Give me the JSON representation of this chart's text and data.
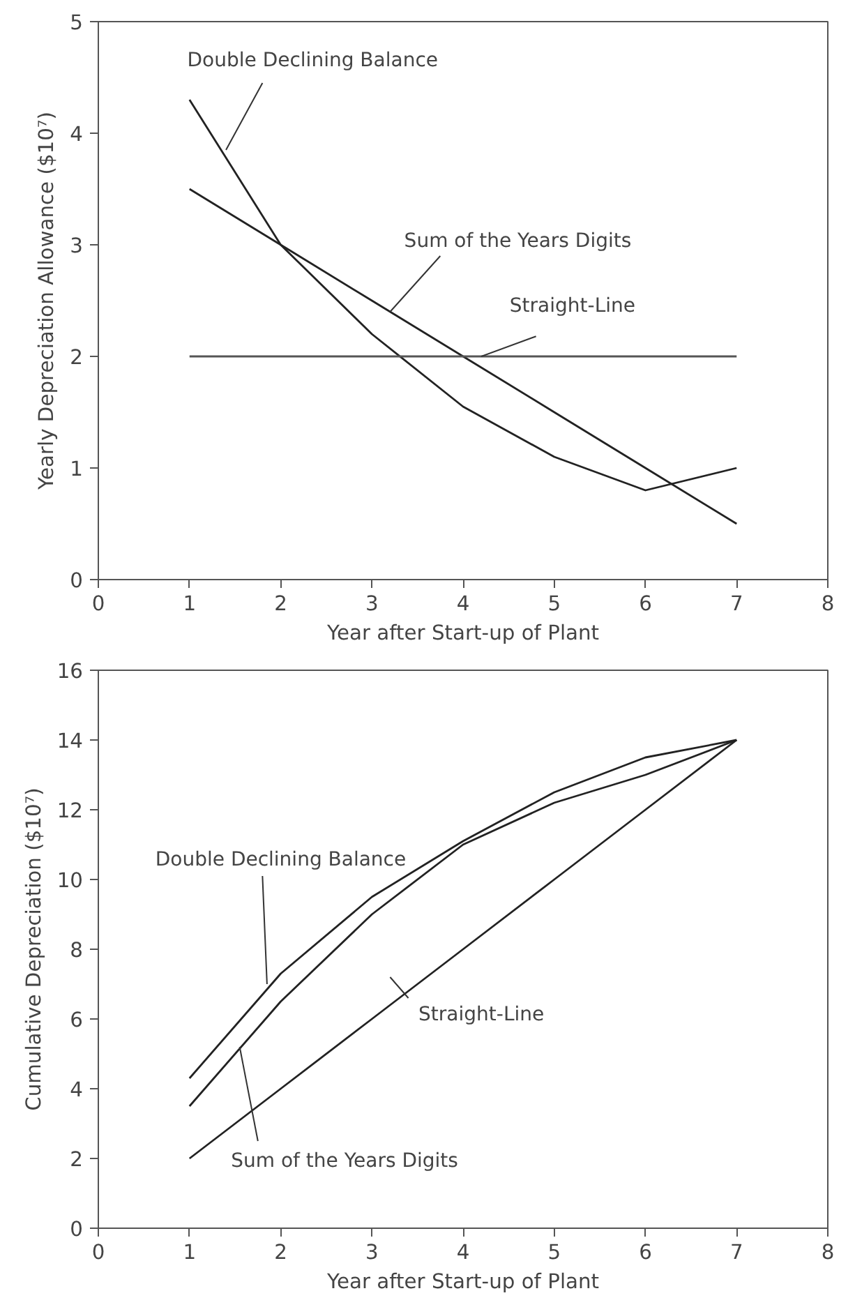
{
  "chart_data": [
    {
      "type": "line",
      "xlabel": "Year after Start-up of Plant",
      "ylabel": "Yearly Depreciation Allowance ($10⁷)",
      "x": [
        1,
        2,
        3,
        4,
        5,
        6,
        7
      ],
      "xlim": [
        0,
        8
      ],
      "xticks": [
        0,
        1,
        2,
        3,
        4,
        5,
        6,
        7,
        8
      ],
      "ylim": [
        0,
        5
      ],
      "yticks": [
        0,
        1,
        2,
        3,
        4,
        5
      ],
      "grid": false,
      "legend": false,
      "series": [
        {
          "name": "Double Declining Balance",
          "color": "#222222",
          "values": [
            4.3,
            3.0,
            2.2,
            1.55,
            1.1,
            0.8,
            1.0
          ]
        },
        {
          "name": "Sum of the Years Digits",
          "color": "#222222",
          "values": [
            3.5,
            3.0,
            2.5,
            2.0,
            1.5,
            1.0,
            0.5
          ]
        },
        {
          "name": "Straight-Line",
          "color": "#555555",
          "values": [
            2,
            2,
            2,
            2,
            2,
            2,
            2
          ]
        }
      ]
    },
    {
      "type": "line",
      "xlabel": "Year after Start-up of Plant",
      "ylabel": "Cumulative Depreciation ($10⁷)",
      "x": [
        1,
        2,
        3,
        4,
        5,
        6,
        7
      ],
      "xlim": [
        0,
        8
      ],
      "xticks": [
        0,
        1,
        2,
        3,
        4,
        5,
        6,
        7,
        8
      ],
      "ylim": [
        0,
        16
      ],
      "yticks": [
        0,
        2,
        4,
        6,
        8,
        10,
        12,
        14,
        16
      ],
      "grid": false,
      "legend": false,
      "series": [
        {
          "name": "Double Declining Balance",
          "color": "#222222",
          "values": [
            4.3,
            7.3,
            9.5,
            11.1,
            12.5,
            13.5,
            14
          ]
        },
        {
          "name": "Sum of the Years Digits",
          "color": "#222222",
          "values": [
            3.5,
            6.5,
            9.0,
            11.0,
            12.2,
            13.0,
            14
          ]
        },
        {
          "name": "Straight-Line",
          "color": "#222222",
          "values": [
            2,
            4,
            6,
            8,
            10,
            12,
            14
          ]
        }
      ]
    }
  ]
}
